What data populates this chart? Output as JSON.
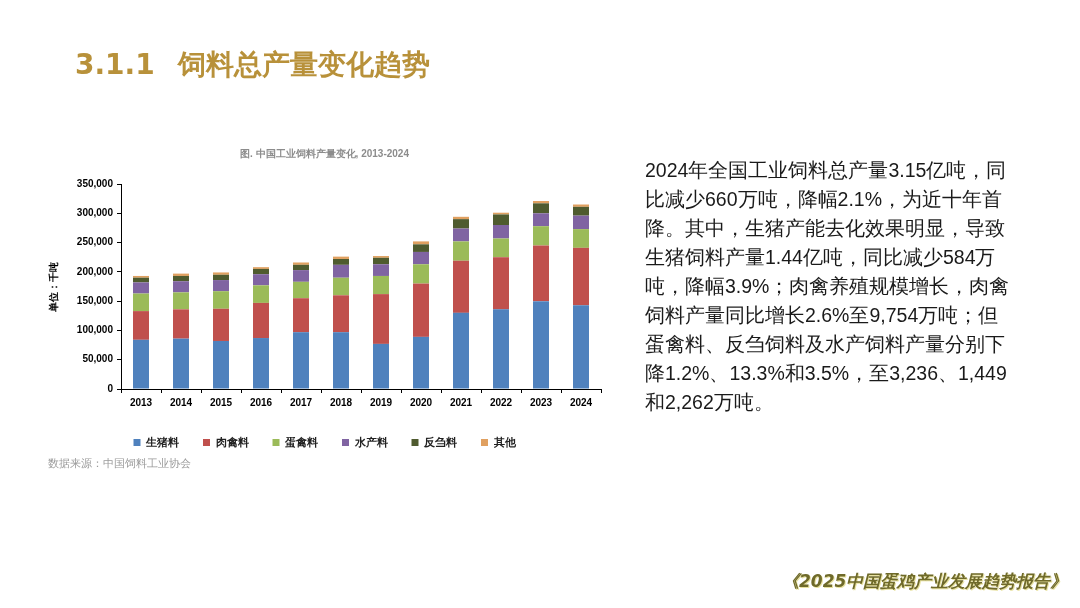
{
  "chart_data": {
    "type": "bar",
    "title": "3.1.1 饲料总产量变化趋势",
    "subtitle": "图. 中国工业饲料产量变化, 2013-2024",
    "ylabel": "单位：千吨",
    "categories": [
      "2013",
      "2014",
      "2015",
      "2016",
      "2017",
      "2018",
      "2019",
      "2020",
      "2021",
      "2022",
      "2023",
      "2024"
    ],
    "series": [
      {
        "name": "生猪料",
        "color": "#4f81bd",
        "values": [
          84000,
          86000,
          82000,
          87000,
          97000,
          97000,
          77000,
          89000,
          130000,
          136000,
          150000,
          143000
        ]
      },
      {
        "name": "肉禽料",
        "color": "#c0504d",
        "values": [
          49000,
          50000,
          55000,
          60000,
          58000,
          63000,
          85000,
          91000,
          89000,
          89000,
          95000,
          98000
        ]
      },
      {
        "name": "蛋禽料",
        "color": "#9bbb59",
        "values": [
          30000,
          29000,
          30000,
          30000,
          28000,
          30000,
          31000,
          33000,
          33000,
          32000,
          33000,
          32000
        ]
      },
      {
        "name": "水产料",
        "color": "#8064a2",
        "values": [
          19000,
          19000,
          19000,
          19000,
          20000,
          22000,
          20000,
          21000,
          22000,
          23000,
          22000,
          23000
        ]
      },
      {
        "name": "反刍料",
        "color": "#4f5b2f",
        "values": [
          8000,
          9000,
          9000,
          9000,
          9000,
          10000,
          11000,
          13000,
          16000,
          18000,
          17000,
          15000
        ]
      },
      {
        "name": "其他",
        "color": "#e0a060",
        "values": [
          3000,
          4000,
          4000,
          3000,
          4000,
          4000,
          3000,
          5000,
          4000,
          3000,
          4000,
          4000
        ]
      }
    ],
    "stacked": true,
    "ylim": [
      0,
      350000
    ],
    "yticks": [
      0,
      {
        "value": 50000,
        "label": "50,000"
      },
      {
        "value": 100000,
        "label": "100,000"
      },
      {
        "value": 150000,
        "label": "150,000"
      },
      {
        "value": 200000,
        "label": "200,000"
      },
      {
        "value": 250000,
        "label": "250,000"
      },
      {
        "value": 300000,
        "label": "300,000"
      },
      {
        "value": 350000,
        "label": "350,000"
      }
    ],
    "grid": false,
    "legend": "bottom",
    "annotations": [
      "2024年全国工业饲料总产量3.15亿吨，同比减少660万吨，降幅2.1%，为近十年首降。其中，生猪产能去化效果明显，导致生猪饲料产量1.44亿吨，同比减少584万吨，降幅3.9%；肉禽养殖规模增长，肉禽饲料产量同比增长2.6%至9,754万吨；但蛋禽料、反刍饲料及水产饲料产量分别下降1.2%、13.3%和3.5%，至3,236、1,449和2,262万吨。",
      "数据来源：中国饲料工业协会",
      "《2025中国蛋鸡产业发展趋势报告》"
    ]
  }
}
